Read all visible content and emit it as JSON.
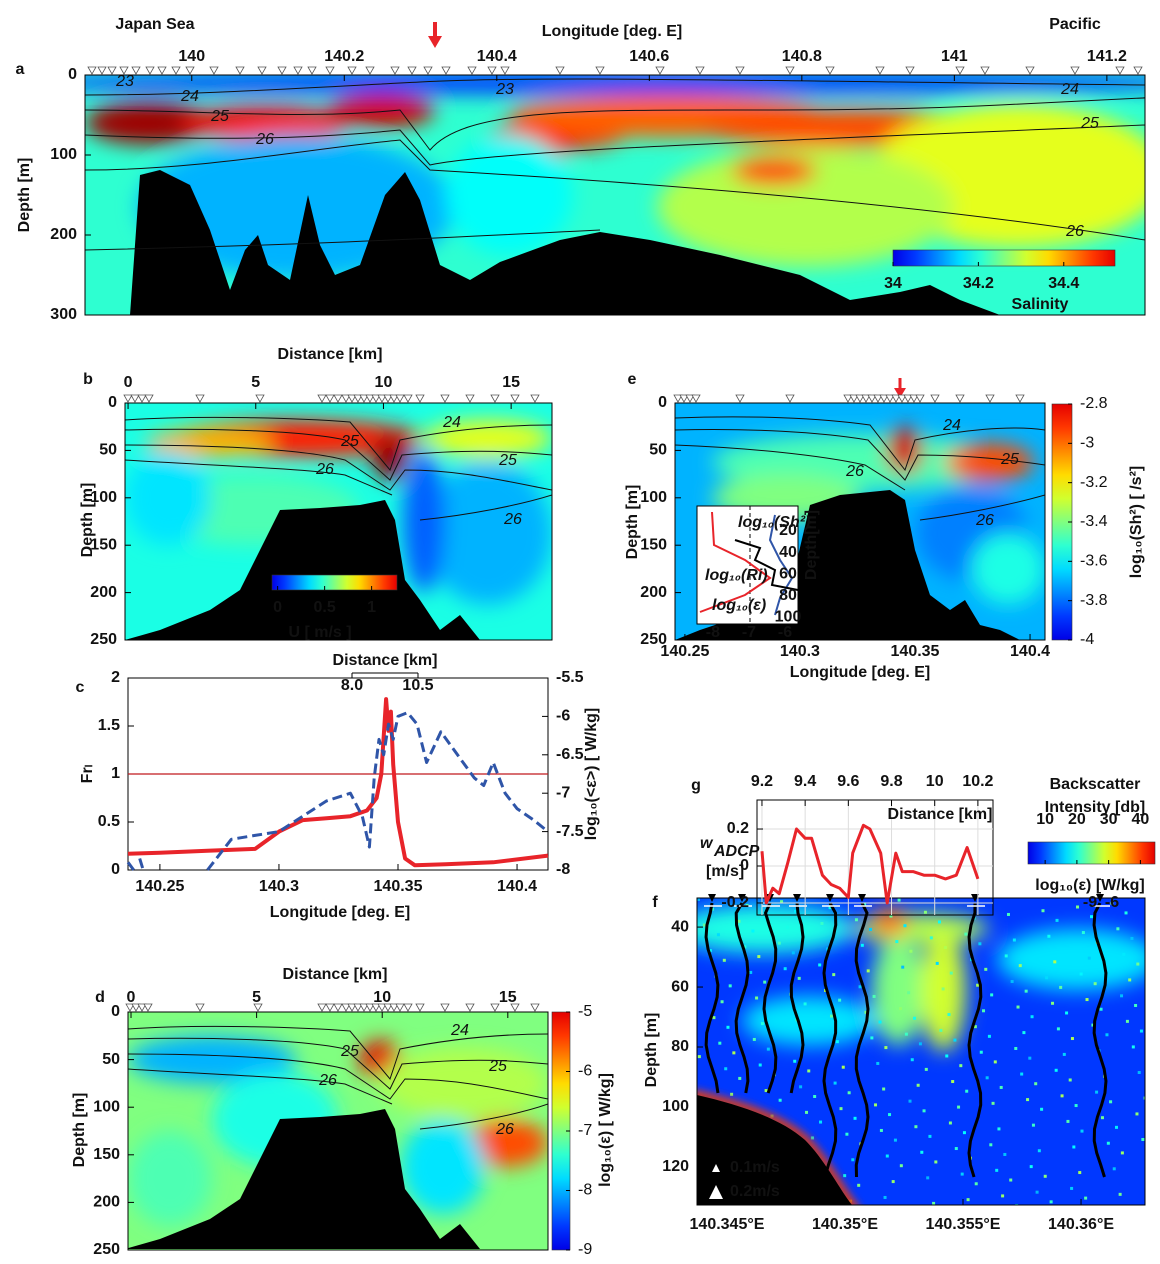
{
  "chart_data": [
    {
      "type": "heatmap",
      "panel_label": "a",
      "title_left": "Japan Sea",
      "title_right": "Pacific",
      "xlabel": "Longitude [deg. E]",
      "ylabel": "Depth  [m]",
      "xlim": [
        139.86,
        141.25
      ],
      "xticks": [
        140,
        140.2,
        140.4,
        140.6,
        140.8,
        141,
        141.2
      ],
      "ylim": [
        0,
        300
      ],
      "yticks": [
        0,
        100,
        200,
        300
      ],
      "contour_labels": [
        23,
        24,
        25,
        26,
        23,
        24,
        25,
        26
      ],
      "colorbar": {
        "label": "Salinity",
        "lim": [
          34,
          34.52
        ],
        "ticks": [
          34,
          34.2,
          34.4
        ]
      }
    },
    {
      "type": "heatmap",
      "panel_label": "b",
      "xlabel": "Distance [km]",
      "ylabel": "Depth  [m]",
      "xlim": [
        -0.12,
        16.6
      ],
      "xticks": [
        0,
        5,
        10,
        15
      ],
      "ylim": [
        0,
        250
      ],
      "yticks": [
        0,
        50,
        100,
        150,
        200,
        250
      ],
      "contour_labels": [
        24,
        25,
        26,
        25,
        26
      ],
      "colorbar": {
        "label": "U [ m/s ]",
        "lim": [
          -0.06,
          1.27
        ],
        "ticks": [
          0,
          0.5,
          1
        ]
      }
    },
    {
      "type": "line",
      "panel_label": "c",
      "xlabel": "Longitude  [deg. E]",
      "ylabel": "Frₗ",
      "y2label": "log₁₀(<ε>) [ W/kg]",
      "xlim": [
        140.2366,
        140.413
      ],
      "xticks": [
        140.25,
        140.3,
        140.35,
        140.4
      ],
      "ylim": [
        0,
        2
      ],
      "yticks": [
        0,
        0.5,
        1,
        1.5,
        2
      ],
      "y2lim": [
        -8,
        -5.5
      ],
      "y2ticks": [
        -8,
        -7.5,
        -7,
        -6.5,
        -6,
        -5.5
      ],
      "hline": 1,
      "inset_axis": {
        "label": "Distance [km]",
        "lim": [
          8,
          10.5
        ],
        "ticks": [
          {
            "value": 8,
            "label": "8.0"
          },
          10.5
        ]
      },
      "series": [
        {
          "color": "#e8242a",
          "style": "solid",
          "x": [
            140.2366,
            140.25,
            140.27,
            140.29,
            140.3,
            140.31,
            140.32,
            140.33,
            140.337,
            140.341,
            140.343,
            140.345,
            140.346,
            140.347,
            140.348,
            140.35,
            140.353,
            140.357,
            140.37,
            140.39,
            140.413
          ],
          "values": [
            0.17,
            0.18,
            0.2,
            0.22,
            0.4,
            0.52,
            0.54,
            0.56,
            0.62,
            0.75,
            1.0,
            1.78,
            1.45,
            1.65,
            1.1,
            0.5,
            0.12,
            0.05,
            0.06,
            0.08,
            0.15
          ]
        },
        {
          "color": "#2f55a8",
          "style": "dashed",
          "axis": "y2",
          "x": [
            140.2366,
            140.239,
            140.24,
            140.2415,
            140.243,
            140.26,
            140.27,
            140.28,
            140.29,
            140.3,
            140.31,
            140.32,
            140.33,
            140.335,
            140.338,
            140.34,
            140.342,
            140.344,
            140.346,
            140.348,
            140.35,
            140.354,
            140.358,
            140.362,
            140.368,
            140.375,
            140.382,
            140.386,
            140.39,
            140.395,
            140.4,
            140.407,
            140.413
          ],
          "values": [
            -7.9,
            -8.0,
            null,
            -7.85,
            -8.0,
            null,
            -8.0,
            -7.6,
            -7.55,
            -7.5,
            -7.3,
            -7.1,
            -7.0,
            -7.3,
            -7.7,
            -6.8,
            -6.3,
            -6.5,
            -6.1,
            -6.3,
            -6.0,
            -5.95,
            -6.1,
            -6.6,
            -6.2,
            -6.5,
            -6.8,
            -6.9,
            -6.6,
            -7.0,
            -7.2,
            -7.35,
            -7.5
          ]
        }
      ]
    },
    {
      "type": "heatmap",
      "panel_label": "d",
      "xlabel": "Distance [km]",
      "ylabel": "Depth  [m]",
      "xlim": [
        -0.12,
        16.6
      ],
      "xticks": [
        0,
        5,
        10,
        15
      ],
      "ylim": [
        0,
        250
      ],
      "yticks": [
        0,
        50,
        100,
        150,
        200,
        250
      ],
      "contour_labels": [
        24,
        25,
        26,
        25,
        26
      ],
      "colorbar": {
        "label": "log₁₀(ε)  [ W/kg]",
        "lim": [
          -9,
          -5
        ],
        "ticks": [
          -9,
          -8,
          -7,
          -6,
          -5
        ]
      }
    },
    {
      "type": "heatmap",
      "panel_label": "e",
      "xlabel": "Longitude  [deg. E]",
      "ylabel": "Depth  [m]",
      "xlim": [
        140.2457,
        140.4065
      ],
      "xticks": [
        140.25,
        140.3,
        140.35,
        140.4
      ],
      "ylim": [
        0,
        250
      ],
      "yticks": [
        0,
        50,
        100,
        150,
        200,
        250
      ],
      "contour_labels": [
        24,
        26,
        25,
        26
      ],
      "colorbar": {
        "label": "log₁₀(Sh²)  [ /s²]",
        "lim": [
          -4,
          -2.8
        ],
        "ticks": [
          -4,
          -3.8,
          -3.6,
          -3.4,
          -3.2,
          -3,
          -2.8
        ]
      },
      "inset": {
        "sh2_label": "log₁₀(Sh²)",
        "ri_label": "log₁₀(Ri)",
        "eps_label": "log₁₀(ε)",
        "depth_label": "Depth[m]",
        "xlim": [
          -8.44,
          -5.64
        ],
        "xticks": [
          -8,
          -7,
          -6
        ],
        "ylim": [
          -3,
          106
        ],
        "yticks": [
          20,
          40,
          60,
          80,
          100
        ]
      }
    },
    {
      "type": "heatmap",
      "panel_label": "f",
      "ylabel": "Depth  [m]",
      "xlim": [
        140.34373,
        140.36271
      ],
      "xticks": [
        {
          "value": 140.345,
          "label": "140.345°E"
        },
        {
          "value": 140.35,
          "label": "140.35°E"
        },
        {
          "value": 140.355,
          "label": "140.355°E"
        },
        {
          "value": 140.36,
          "label": "140.36°E"
        }
      ],
      "ylim": [
        30.3,
        132.7
      ],
      "yticks": [
        40,
        60,
        80,
        100,
        120
      ],
      "colorbar": {
        "label_lines": [
          "Backscatter",
          "Intensity [db]"
        ],
        "lim": [
          4.6,
          44.6
        ],
        "ticks": [
          10,
          20,
          30,
          40
        ]
      },
      "eps_scale": {
        "label": "log₁₀(ε) [W/kg]",
        "ticks": [
          -9,
          -6
        ]
      },
      "legend": [
        "0.1m/s",
        "0.2m/s"
      ]
    },
    {
      "type": "line",
      "panel_label": "g",
      "xlabel": "Distance [km]",
      "ylabel": "w",
      "ylabel_sub": "ADCP",
      "ylabel_unit": "[m/s]",
      "xlim": [
        9.177,
        10.27
      ],
      "xticks": [
        9.2,
        9.4,
        9.6,
        9.8,
        10,
        10.2
      ],
      "ylim": [
        -0.265,
        0.357
      ],
      "yticks": [
        -0.2,
        0,
        0.2
      ],
      "grid": true,
      "series": [
        {
          "color": "#e8242a",
          "style": "solid",
          "x": [
            9.2,
            9.22,
            9.25,
            9.28,
            9.32,
            9.36,
            9.4,
            9.43,
            9.48,
            9.52,
            9.56,
            9.6,
            9.62,
            9.67,
            9.7,
            9.75,
            9.78,
            9.82,
            9.85,
            9.9,
            9.95,
            10,
            10.05,
            10.1,
            10.15,
            10.2
          ],
          "values": [
            0.08,
            -0.2,
            -0.12,
            -0.15,
            0.02,
            0.2,
            0.15,
            0.15,
            -0.05,
            -0.1,
            -0.12,
            -0.17,
            0.07,
            0.22,
            0.2,
            0.07,
            -0.2,
            0.07,
            -0.03,
            -0.03,
            -0.05,
            -0.05,
            -0.07,
            -0.05,
            0.1,
            -0.07
          ]
        }
      ]
    }
  ]
}
